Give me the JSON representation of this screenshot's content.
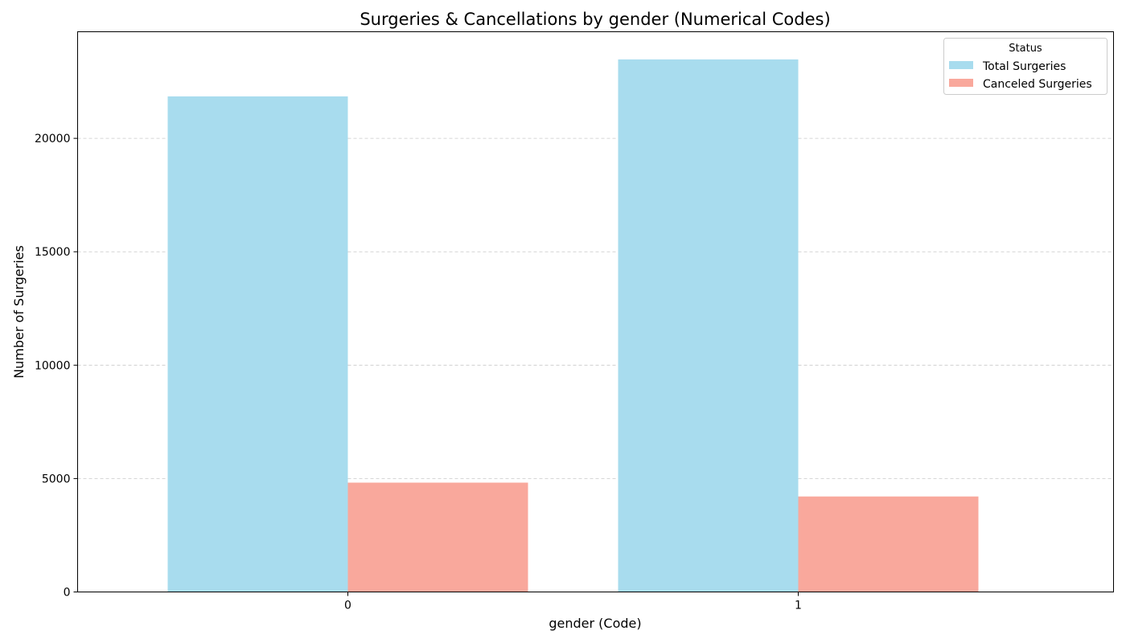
{
  "chart_data": {
    "type": "bar",
    "title": "Surgeries & Cancellations by gender (Numerical Codes)",
    "xlabel": "gender (Code)",
    "ylabel": "Number of Surgeries",
    "categories": [
      "0",
      "1"
    ],
    "series": [
      {
        "name": "Total Surgeries",
        "values": [
          21850,
          23480
        ],
        "color": "#a8dcee"
      },
      {
        "name": "Canceled Surgeries",
        "values": [
          4820,
          4210
        ],
        "color": "#f9a89c"
      }
    ],
    "ylim": [
      0,
      24700
    ],
    "xlim": [
      -0.6,
      1.7
    ],
    "bar_width": 0.8,
    "yticks": [
      0,
      5000,
      10000,
      15000,
      20000
    ],
    "grid": "y-dashed",
    "legend": {
      "title": "Status",
      "position": "top-right"
    }
  }
}
